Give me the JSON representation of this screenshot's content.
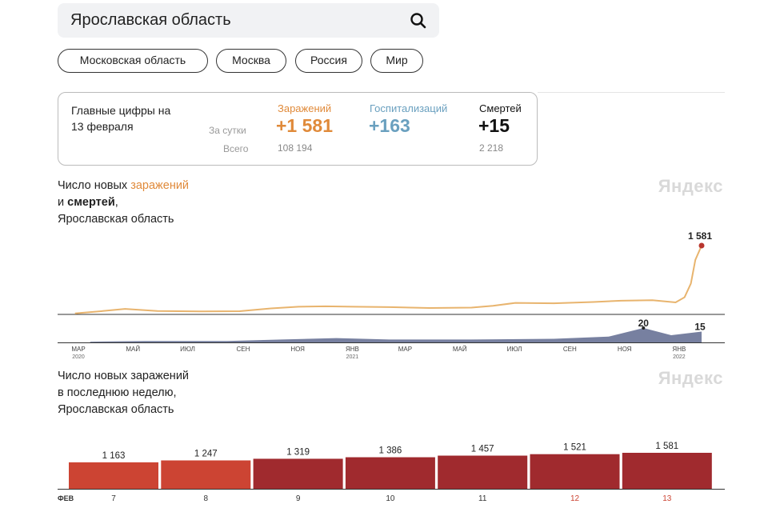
{
  "search": {
    "value": "Ярославская область"
  },
  "chips": [
    "Московская область",
    "Москва",
    "Россия",
    "Мир"
  ],
  "summary": {
    "title_line1": "Главные цифры на",
    "title_line2": "13 февраля",
    "per_day_label": "За сутки",
    "total_label": "Всего",
    "infections": {
      "label": "Заражений",
      "day": "+1 581",
      "total": "108 194",
      "color": "#e08a3a"
    },
    "hospital": {
      "label": "Госпитализаций",
      "day": "+163",
      "color": "#6aa0bf"
    },
    "deaths": {
      "label": "Смертей",
      "day": "+15",
      "total": "2 218",
      "color": "#111111"
    }
  },
  "chart1": {
    "title_a": "Число новых ",
    "title_b": "заражений",
    "title_c": "и ",
    "title_d": "смертей",
    "title_e": ",",
    "title_f": "Ярославская область",
    "watermark": "Яндекс",
    "infections_end_label": "1 581",
    "deaths_peak_label": "20",
    "deaths_end_label": "15",
    "month_ticks": [
      "МАР",
      "МАЙ",
      "ИЮЛ",
      "СЕН",
      "НОЯ",
      "ЯНВ",
      "МАР",
      "МАЙ",
      "ИЮЛ",
      "СЕН",
      "НОЯ",
      "ЯНВ"
    ],
    "year_labels": [
      "2020",
      "2021",
      "2022"
    ]
  },
  "chart2": {
    "title_line1": "Число новых заражений",
    "title_line2": "в последнюю неделю,",
    "title_line3": "Ярославская область",
    "watermark": "Яндекс",
    "month_label": "ФЕВ"
  },
  "chart_data": [
    {
      "type": "line",
      "title": "Число новых заражений и смертей, Ярославская область",
      "xlabel": "",
      "ylabel": "",
      "x_range": [
        "2020-03",
        "2022-02-13"
      ],
      "series": [
        {
          "name": "заражений",
          "color": "#e8b46e",
          "x": [
            "2020-03-15",
            "2020-04-15",
            "2020-05-10",
            "2020-06-15",
            "2020-08-01",
            "2020-09-15",
            "2020-10-20",
            "2020-11-20",
            "2020-12-20",
            "2021-01-20",
            "2021-03-01",
            "2021-04-15",
            "2021-06-01",
            "2021-06-25",
            "2021-07-20",
            "2021-09-01",
            "2021-10-15",
            "2021-11-15",
            "2021-12-20",
            "2022-01-15",
            "2022-01-25",
            "2022-02-01",
            "2022-02-06",
            "2022-02-13"
          ],
          "values": [
            5,
            60,
            110,
            60,
            50,
            55,
            120,
            160,
            170,
            160,
            150,
            130,
            140,
            180,
            250,
            240,
            270,
            300,
            310,
            260,
            380,
            700,
            1250,
            1581
          ]
        },
        {
          "name": "смертей",
          "color": "#4a5580",
          "x": [
            "2020-04-01",
            "2020-06-01",
            "2020-09-01",
            "2020-11-01",
            "2021-01-01",
            "2021-03-01",
            "2021-06-01",
            "2021-09-01",
            "2021-11-01",
            "2021-12-10",
            "2022-01-10",
            "2022-02-13"
          ],
          "values": [
            1,
            2,
            2,
            4,
            6,
            4,
            4,
            5,
            8,
            20,
            10,
            15
          ]
        }
      ],
      "annotations": [
        "1 581",
        "20",
        "15"
      ]
    },
    {
      "type": "bar",
      "title": "Число новых заражений в последнюю неделю, Ярославская область",
      "categories": [
        "7",
        "8",
        "9",
        "10",
        "11",
        "12",
        "13"
      ],
      "values": [
        1163,
        1247,
        1319,
        1386,
        1457,
        1521,
        1581
      ],
      "value_labels": [
        "1 163",
        "1 247",
        "1 319",
        "1 386",
        "1 457",
        "1 521",
        "1 581"
      ],
      "colors": [
        "#cc4433",
        "#cc4433",
        "#a02a2e",
        "#a02a2e",
        "#a02a2e",
        "#a02a2e",
        "#a02a2e"
      ],
      "weekend_label_color": "#cc4433",
      "weekend_categories": [
        "12",
        "13"
      ],
      "xlabel": "ФЕВ"
    }
  ]
}
